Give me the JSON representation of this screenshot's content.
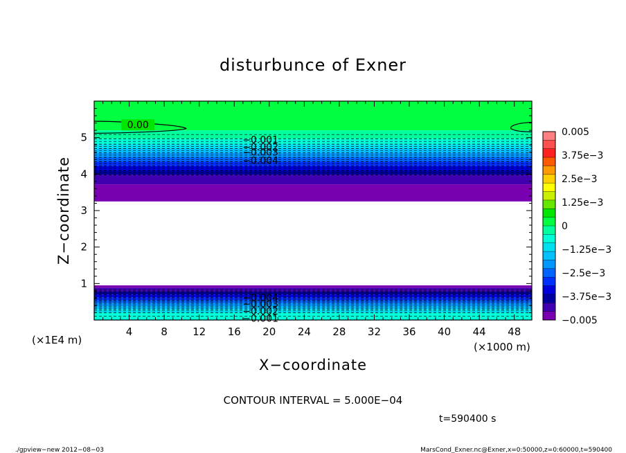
{
  "chart_data": {
    "type": "heatmap",
    "title": "disturbunce of Exner",
    "xlabel": "X−coordinate",
    "ylabel": "Z−coordinate",
    "x_unit_label": "(×1000 m)",
    "y_unit_label": "(×1E4 m)",
    "xlim": [
      0,
      50
    ],
    "ylim": [
      0,
      6
    ],
    "x_ticks": [
      4,
      8,
      12,
      16,
      20,
      24,
      28,
      32,
      36,
      40,
      44,
      48
    ],
    "y_ticks": [
      1,
      2,
      3,
      4,
      5
    ],
    "colorbar": {
      "labels": [
        "0.005",
        "3.75e−3",
        "2.5e−3",
        "1.25e−3",
        "0",
        "−1.25e−3",
        "−2.5e−3",
        "−3.75e−3",
        "−0.005"
      ],
      "label_values": [
        0.005,
        0.00375,
        0.0025,
        0.00125,
        0,
        -0.00125,
        -0.0025,
        -0.00375,
        -0.005
      ],
      "colors_top_to_bottom": [
        "#ff8080",
        "#ff5050",
        "#ff2020",
        "#ff5a00",
        "#ff9a00",
        "#ffd000",
        "#ffff00",
        "#c8f000",
        "#66e600",
        "#00e600",
        "#00ff40",
        "#00ff9c",
        "#00ffd8",
        "#00e0f0",
        "#00c0ff",
        "#0098ff",
        "#0064ff",
        "#0030ff",
        "#0000dc",
        "#0000a0",
        "#4000b0",
        "#7800b0"
      ]
    },
    "bands_upper": [
      {
        "value": 0,
        "color": "#00ff40",
        "z_from": 5.2,
        "z_to": 6.0
      },
      {
        "value": -0.0005,
        "color": "#00ff9c",
        "z_from": 4.97,
        "z_to": 5.2
      },
      {
        "value": -0.001,
        "color": "#00ffd8",
        "z_from": 4.82,
        "z_to": 4.97
      },
      {
        "value": -0.0015,
        "color": "#00e0f0",
        "z_from": 4.7,
        "z_to": 4.82
      },
      {
        "value": -0.002,
        "color": "#00c0ff",
        "z_from": 4.58,
        "z_to": 4.7
      },
      {
        "value": -0.0025,
        "color": "#0098ff",
        "z_from": 4.46,
        "z_to": 4.58
      },
      {
        "value": -0.003,
        "color": "#0064ff",
        "z_from": 4.34,
        "z_to": 4.46
      },
      {
        "value": -0.0035,
        "color": "#0030ff",
        "z_from": 4.22,
        "z_to": 4.34
      },
      {
        "value": -0.004,
        "color": "#0000dc",
        "z_from": 4.1,
        "z_to": 4.22
      },
      {
        "value": -0.0045,
        "color": "#0000a0",
        "z_from": 3.98,
        "z_to": 4.1
      },
      {
        "value": -0.0048,
        "color": "#4000b0",
        "z_from": 3.72,
        "z_to": 3.98
      },
      {
        "value": -0.005,
        "color": "#7800b0",
        "z_from": 3.25,
        "z_to": 3.72
      }
    ],
    "bands_lower": [
      {
        "value": -0.005,
        "color": "#7800b0",
        "z_from": 0.88,
        "z_to": 0.95
      },
      {
        "value": -0.0048,
        "color": "#4000b0",
        "z_from": 0.78,
        "z_to": 0.88
      },
      {
        "value": -0.0045,
        "color": "#0000a0",
        "z_from": 0.7,
        "z_to": 0.78
      },
      {
        "value": -0.004,
        "color": "#0000dc",
        "z_from": 0.62,
        "z_to": 0.7
      },
      {
        "value": -0.0035,
        "color": "#0030ff",
        "z_from": 0.54,
        "z_to": 0.62
      },
      {
        "value": -0.003,
        "color": "#0064ff",
        "z_from": 0.46,
        "z_to": 0.54
      },
      {
        "value": -0.0025,
        "color": "#0098ff",
        "z_from": 0.38,
        "z_to": 0.46
      },
      {
        "value": -0.002,
        "color": "#00c0ff",
        "z_from": 0.3,
        "z_to": 0.38
      },
      {
        "value": -0.0015,
        "color": "#00e0f0",
        "z_from": 0.2,
        "z_to": 0.3
      },
      {
        "value": -0.001,
        "color": "#00ffd8",
        "z_from": 0.0,
        "z_to": 0.2
      }
    ],
    "contour_labels": [
      {
        "text": "0.00",
        "x": 5.0,
        "z": 5.35
      },
      {
        "text": "−0.001",
        "x": 19.0,
        "z": 4.95
      },
      {
        "text": "−0.002",
        "x": 19.0,
        "z": 4.75
      },
      {
        "text": "−0.003",
        "x": 19.0,
        "z": 4.6
      },
      {
        "text": "−0.004",
        "x": 19.0,
        "z": 4.38
      },
      {
        "text": "−0.004",
        "x": 19.0,
        "z": 0.62
      },
      {
        "text": "−0.003",
        "x": 19.0,
        "z": 0.45
      },
      {
        "text": "−0.002",
        "x": 19.0,
        "z": 0.25
      },
      {
        "text": "−0.001",
        "x": 19.0,
        "z": 0.05
      }
    ],
    "grid": false,
    "legend": "right colorbar"
  },
  "annotations": {
    "contour_interval": "CONTOUR INTERVAL = 5.000E−04",
    "time": "t=590400  s",
    "footer_left": "./gpview−new   2012−08−03",
    "footer_right": "MarsCond_Exner.nc@Exner,x=0:50000,z=0:60000,t=590400"
  }
}
